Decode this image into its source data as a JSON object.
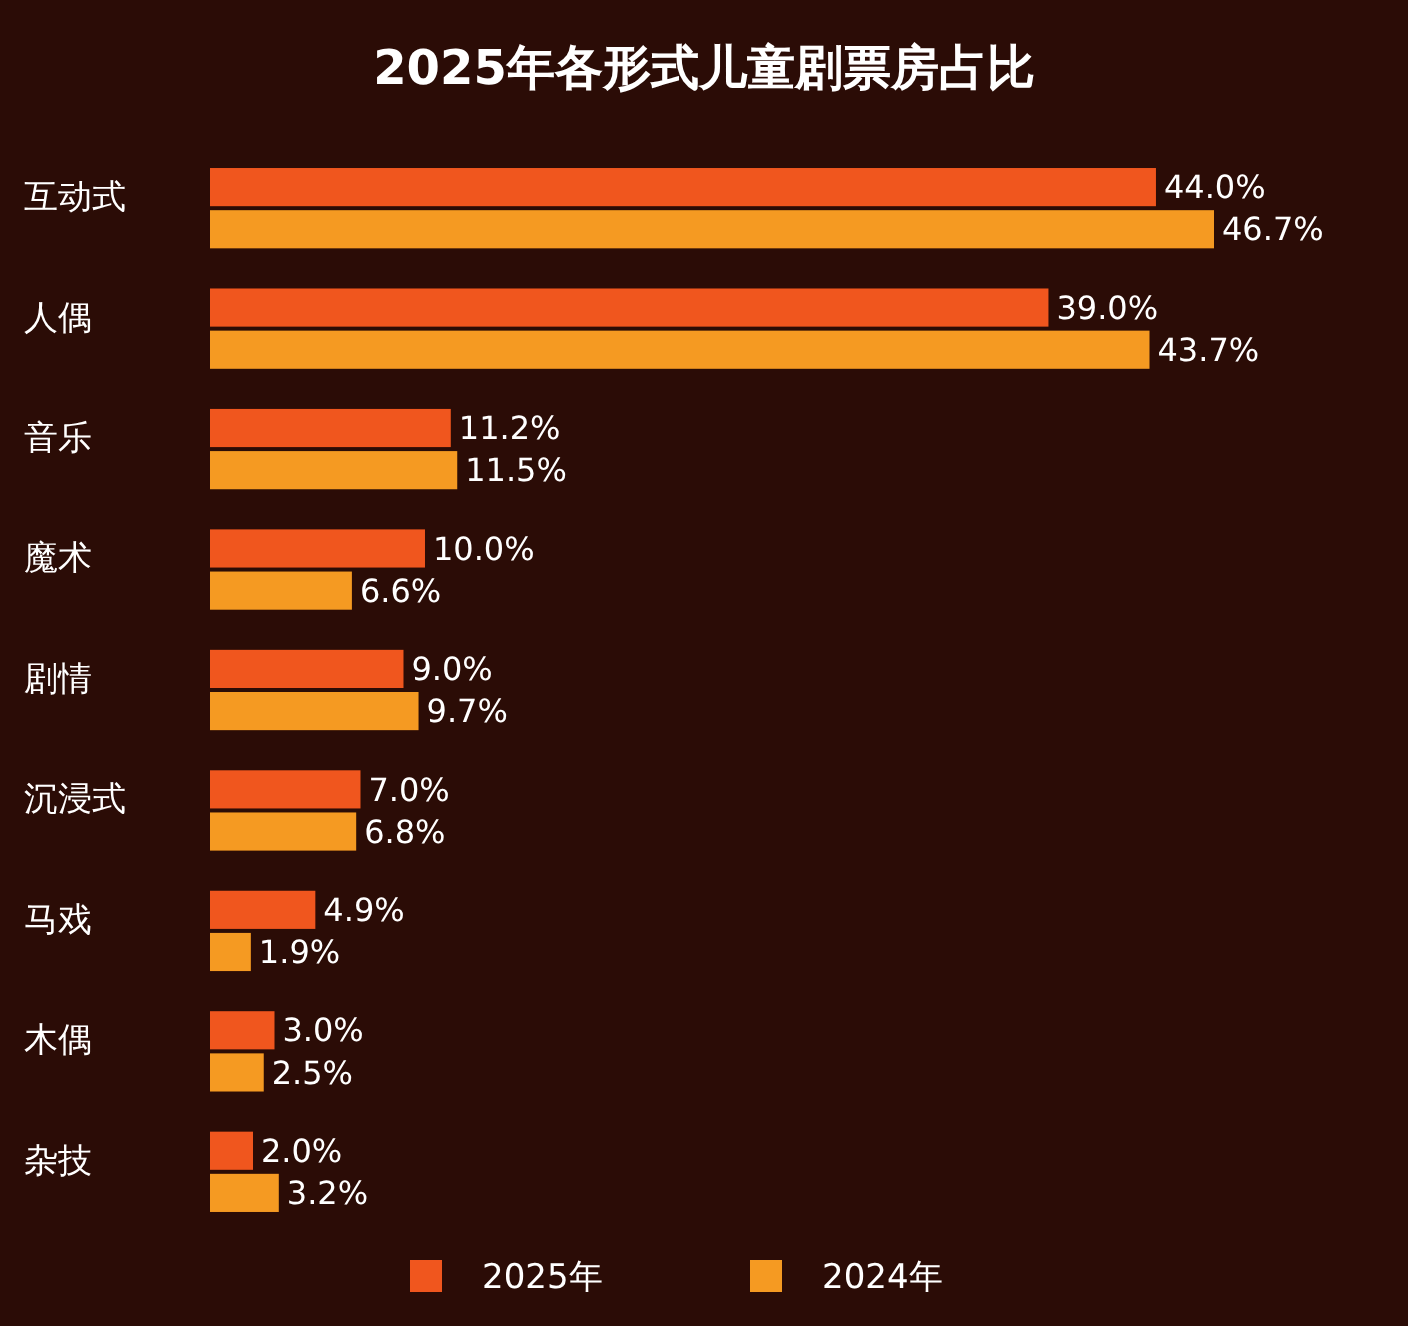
{
  "chart_data": {
    "type": "bar",
    "orientation": "horizontal",
    "title": "2025年各形式儿童剧票房占比",
    "categories": [
      "互动式",
      "人偶",
      "音乐",
      "魔术",
      "剧情",
      "沉浸式",
      "马戏",
      "木偶",
      "杂技"
    ],
    "series": [
      {
        "name": "2025年",
        "color": "#f0561e",
        "values": [
          44.0,
          39.0,
          11.2,
          10.0,
          9.0,
          7.0,
          4.9,
          3.0,
          2.0
        ],
        "value_labels": [
          "44.0%",
          "39.0%",
          "11.2%",
          "10.0%",
          "9.0%",
          "7.0%",
          "4.9%",
          "3.0%",
          "2.0%"
        ]
      },
      {
        "name": "2024年",
        "color": "#f59a22",
        "values": [
          46.7,
          43.7,
          11.5,
          6.6,
          9.7,
          6.8,
          1.9,
          2.5,
          3.2
        ],
        "value_labels": [
          "46.7%",
          "43.7%",
          "11.5%",
          "6.6%",
          "9.7%",
          "6.8%",
          "1.9%",
          "2.5%",
          "3.2%"
        ]
      }
    ],
    "legend": "bottom"
  }
}
